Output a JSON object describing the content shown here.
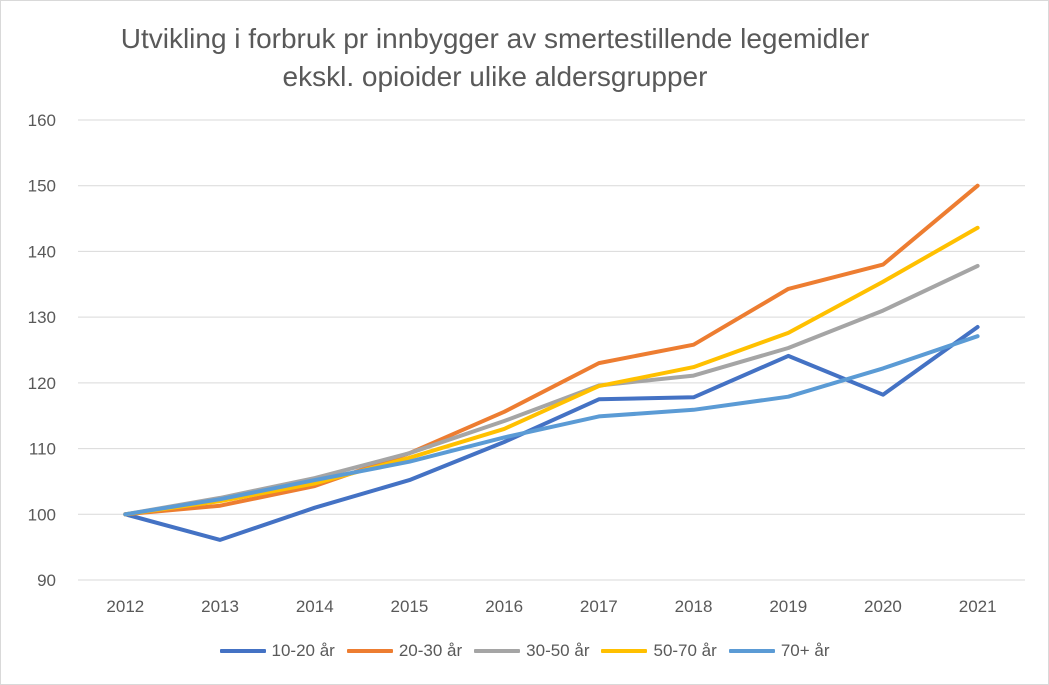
{
  "chart_data": {
    "type": "line",
    "title_lines": [
      "Utvikling i forbruk pr innbygger av smertestillende legemidler",
      "ekskl. opioider ulike aldersgrupper"
    ],
    "xlabel": "",
    "ylabel": "",
    "categories": [
      "2012",
      "2013",
      "2014",
      "2015",
      "2016",
      "2017",
      "2018",
      "2019",
      "2020",
      "2021"
    ],
    "ylim": [
      90,
      160
    ],
    "yticks": [
      90,
      100,
      110,
      120,
      130,
      140,
      150,
      160
    ],
    "grid": true,
    "legend_position": "bottom",
    "series": [
      {
        "name": "10-20 år",
        "color": "#4472C4",
        "values": [
          100,
          96.1,
          101,
          105.2,
          111,
          117.5,
          117.8,
          124.1,
          118.2,
          128.5
        ]
      },
      {
        "name": "20-30 år",
        "color": "#ED7D31",
        "values": [
          100,
          101.3,
          104.3,
          109.3,
          115.6,
          123.0,
          125.8,
          134.3,
          138.0,
          150.0
        ]
      },
      {
        "name": "30-50 år",
        "color": "#A5A5A5",
        "values": [
          100,
          102.5,
          105.5,
          109.3,
          114.2,
          119.6,
          121.1,
          125.3,
          131.0,
          137.8
        ]
      },
      {
        "name": "50-70 år",
        "color": "#FFC000",
        "values": [
          100,
          102.0,
          104.7,
          108.6,
          113.0,
          119.5,
          122.4,
          127.6,
          135.4,
          143.6
        ]
      },
      {
        "name": "70+ år",
        "color": "#5B9BD5",
        "values": [
          100,
          102.3,
          105.2,
          108.0,
          111.7,
          114.9,
          115.9,
          117.9,
          122.2,
          127.1
        ]
      }
    ]
  }
}
